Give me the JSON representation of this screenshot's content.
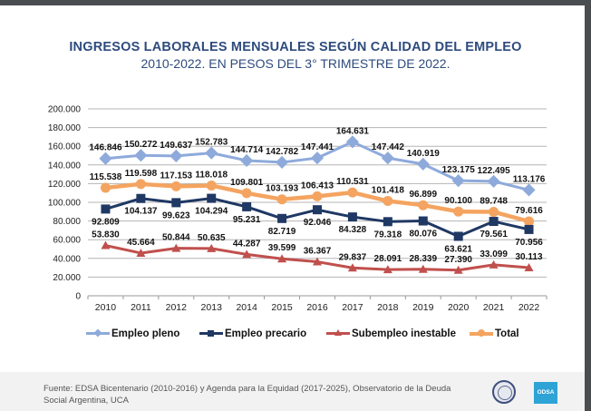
{
  "header": {
    "title": "INGRESOS LABORALES MENSUALES SEGÚN CALIDAD DEL EMPLEO",
    "subtitle": "2010-2022. EN PESOS DEL 3° TRIMESTRE DE 2022."
  },
  "chart_data": {
    "type": "line",
    "title": "INGRESOS LABORALES MENSUALES SEGÚN CALIDAD DEL EMPLEO",
    "subtitle": "2010-2022. EN PESOS DEL 3° TRIMESTRE DE 2022.",
    "xlabel": "",
    "ylabel": "",
    "ylim": [
      0,
      200000
    ],
    "yticks": [
      0,
      20000,
      40000,
      60000,
      80000,
      100000,
      120000,
      140000,
      160000,
      180000,
      200000
    ],
    "ytick_labels": [
      "0",
      "20.000",
      "40.000",
      "60.000",
      "80.000",
      "100.000",
      "120.000",
      "140.000",
      "160.000",
      "180.000",
      "200.000"
    ],
    "grid": true,
    "legend_position": "bottom",
    "categories": [
      "2010",
      "2011",
      "2012",
      "2013",
      "2014",
      "2015",
      "2016",
      "2017",
      "2018",
      "2019",
      "2020",
      "2021",
      "2022"
    ],
    "series": [
      {
        "name": "Empleo pleno",
        "color": "#8eaadb",
        "marker": "diamond",
        "values": [
          146846,
          150272,
          149637,
          152783,
          144714,
          142782,
          147441,
          164631,
          147442,
          140919,
          123175,
          122495,
          113176
        ],
        "labels": [
          "146.846",
          "150.272",
          "149.637",
          "152.783",
          "144.714",
          "142.782",
          "147.441",
          "164.631",
          "147.442",
          "140.919",
          "123.175",
          "122.495",
          "113.176"
        ],
        "label_pos": "above"
      },
      {
        "name": "Empleo precario",
        "color": "#1f3864",
        "marker": "square",
        "values": [
          92809,
          104137,
          99623,
          104294,
          95231,
          82719,
          92046,
          84328,
          79318,
          80076,
          63621,
          79561,
          70956
        ],
        "labels": [
          "92.809",
          "104.137",
          "99.623",
          "104.294",
          "95.231",
          "82.719",
          "92.046",
          "84.328",
          "79.318",
          "80.076",
          "63.621",
          "79.561",
          "70.956"
        ],
        "label_pos": "below"
      },
      {
        "name": "Subempleo inestable",
        "color": "#c0504d",
        "marker": "triangle",
        "values": [
          53830,
          45664,
          50844,
          50635,
          44287,
          39599,
          36367,
          29837,
          28091,
          28339,
          27390,
          33099,
          30113
        ],
        "labels": [
          "53.830",
          "45.664",
          "50.844",
          "50.635",
          "44.287",
          "39.599",
          "36.367",
          "29.837",
          "28.091",
          "28.339",
          "27.390",
          "33.099",
          "30.113"
        ],
        "label_pos": "above"
      },
      {
        "name": "Total",
        "color": "#f4a460",
        "marker": "circle",
        "values": [
          115538,
          119598,
          117153,
          118018,
          109801,
          103193,
          106413,
          110531,
          101418,
          96899,
          90100,
          89748,
          79616
        ],
        "labels": [
          "115.538",
          "119.598",
          "117.153",
          "118.018",
          "109.801",
          "103.193",
          "106.413",
          "110.531",
          "101.418",
          "96.899",
          "90.100",
          "89.748",
          "79.616"
        ],
        "label_pos": "above"
      }
    ]
  },
  "legend": [
    {
      "name": "Empleo pleno",
      "color": "#8eaadb"
    },
    {
      "name": "Empleo precario",
      "color": "#1f3864"
    },
    {
      "name": "Subempleo inestable",
      "color": "#c0504d"
    },
    {
      "name": "Total",
      "color": "#f4a460"
    }
  ],
  "footer": {
    "source": "Fuente: EDSA Bicentenario (2010-2016) y Agenda para la Equidad (2017-2025), Observatorio de la Deuda Social Argentina, UCA",
    "logo_text": "ODSA",
    "logo_color": "#2ea3d6"
  }
}
